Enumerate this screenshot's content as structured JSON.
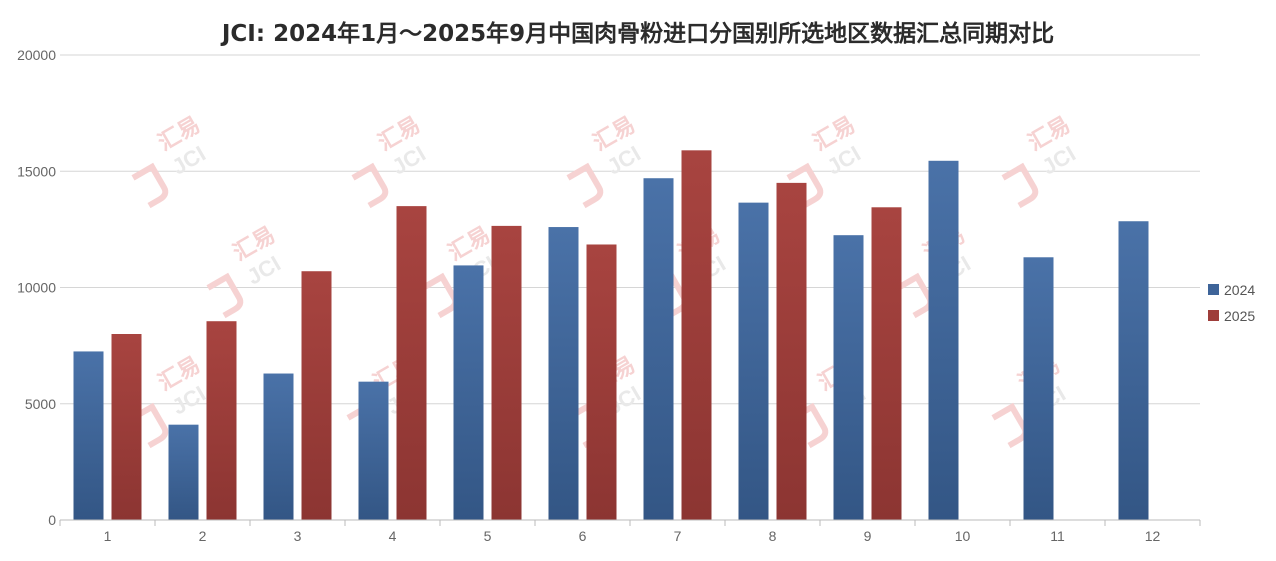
{
  "chart_data": {
    "type": "bar",
    "title": "JCI: 2024年1月～2025年9月中国肉骨粉进口分国别所选地区数据汇总同期对比",
    "categories": [
      "1",
      "2",
      "3",
      "4",
      "5",
      "6",
      "7",
      "8",
      "9",
      "10",
      "11",
      "12"
    ],
    "series": [
      {
        "name": "2024",
        "color": "#3e6499",
        "values": [
          7250,
          4100,
          6300,
          5950,
          10950,
          12600,
          14700,
          13650,
          12250,
          15450,
          11300,
          12850
        ]
      },
      {
        "name": "2025",
        "color": "#9e3d3a",
        "values": [
          8000,
          8550,
          10700,
          13500,
          12650,
          11850,
          15900,
          14500,
          13450,
          null,
          null,
          null
        ]
      }
    ],
    "yticks": [
      "0",
      "5000",
      "10000",
      "15000",
      "20000"
    ],
    "ylim": [
      0,
      20000
    ],
    "grid": true,
    "legend_position": "right"
  },
  "watermark": {
    "brand": "汇易",
    "mark": "JCI"
  }
}
